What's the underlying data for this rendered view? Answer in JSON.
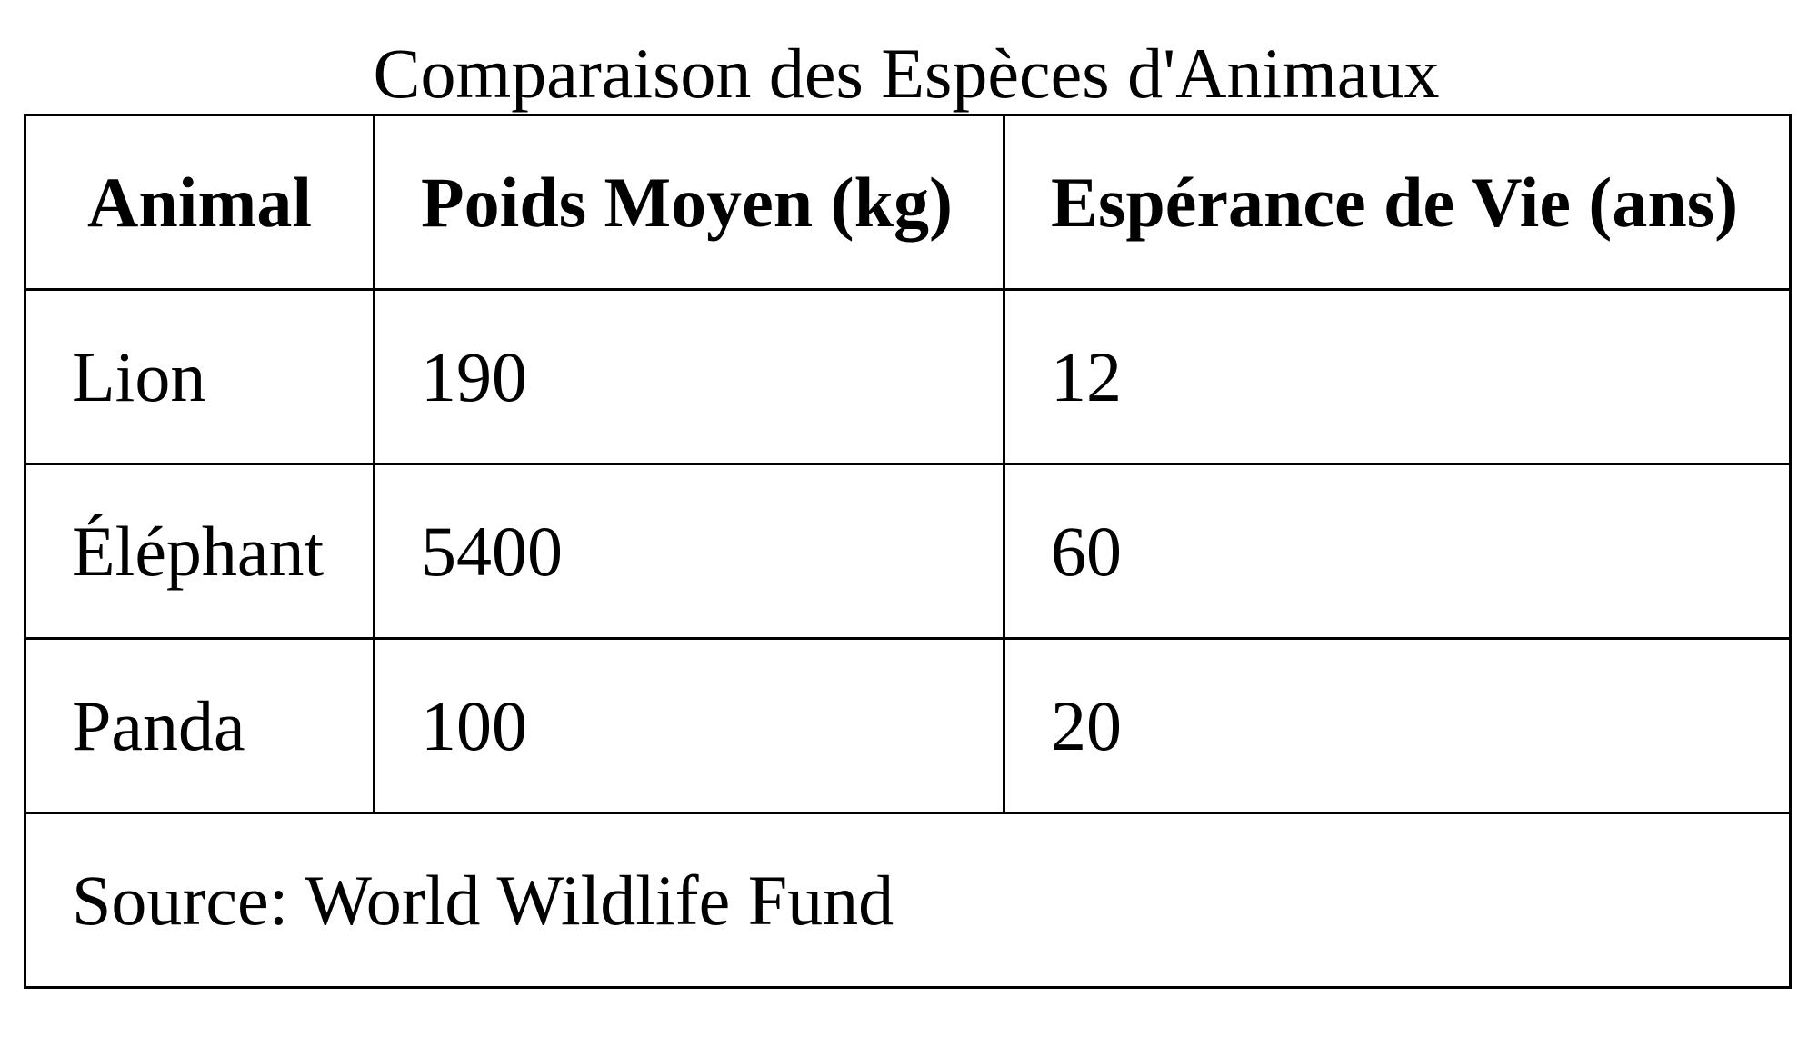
{
  "table": {
    "caption": "Comparaison des Espèces d'Animaux",
    "headers": [
      "Animal",
      "Poids Moyen (kg)",
      "Espérance de Vie (ans)"
    ],
    "rows": [
      [
        "Lion",
        "190",
        "12"
      ],
      [
        "Éléphant",
        "5400",
        "60"
      ],
      [
        "Panda",
        "100",
        "20"
      ]
    ],
    "footer": "Source: World Wildlife Fund"
  }
}
